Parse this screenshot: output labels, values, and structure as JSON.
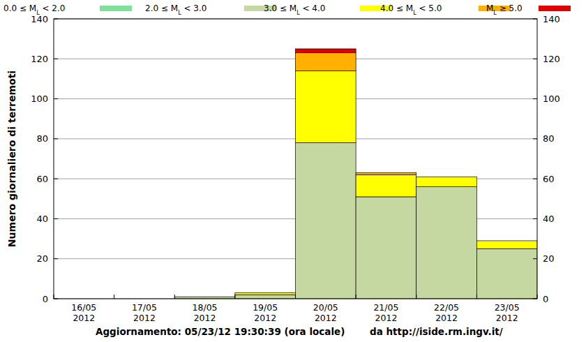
{
  "chart_data": {
    "type": "bar",
    "stacked": true,
    "y_label": "Numero giornaliero di terremoti",
    "annotations": [
      "Aggiornamento: 05/23/12 19:30:39 (ora locale)",
      "da http://iside.rm.ingv.it/"
    ],
    "categories": [
      "16/05\n2012",
      "17/05\n2012",
      "18/05\n2012",
      "19/05\n2012",
      "20/05\n2012",
      "21/05\n2012",
      "22/05\n2012",
      "23/05\n2012"
    ],
    "series": [
      {
        "name": "0.0 ≤ ML < 2.0",
        "color": "#7fe09a",
        "values": [
          0,
          0,
          0,
          0,
          0,
          0,
          0,
          0
        ]
      },
      {
        "name": "2.0 ≤ ML < 3.0",
        "color": "#c6d8a2",
        "values": [
          0,
          0,
          1,
          2,
          78,
          51,
          56,
          25
        ]
      },
      {
        "name": "3.0 ≤ ML < 4.0",
        "color": "#ffff00",
        "values": [
          0,
          0,
          0,
          1,
          36,
          11,
          5,
          4
        ]
      },
      {
        "name": "4.0 ≤ ML < 5.0",
        "color": "#ffb000",
        "values": [
          0,
          0,
          0,
          0,
          9,
          1,
          0,
          0
        ]
      },
      {
        "name": "ML ≥ 5.0",
        "color": "#e00000",
        "values": [
          0,
          0,
          0,
          0,
          2,
          0,
          0,
          0
        ]
      }
    ],
    "ylim": [
      0,
      140
    ],
    "yticks": [
      0,
      20,
      40,
      60,
      80,
      100,
      120,
      140
    ],
    "y2lim": [
      0,
      140
    ],
    "y2ticks": [
      0,
      20,
      40,
      60,
      80,
      100,
      120,
      140
    ],
    "grid": true,
    "legend": "top"
  }
}
